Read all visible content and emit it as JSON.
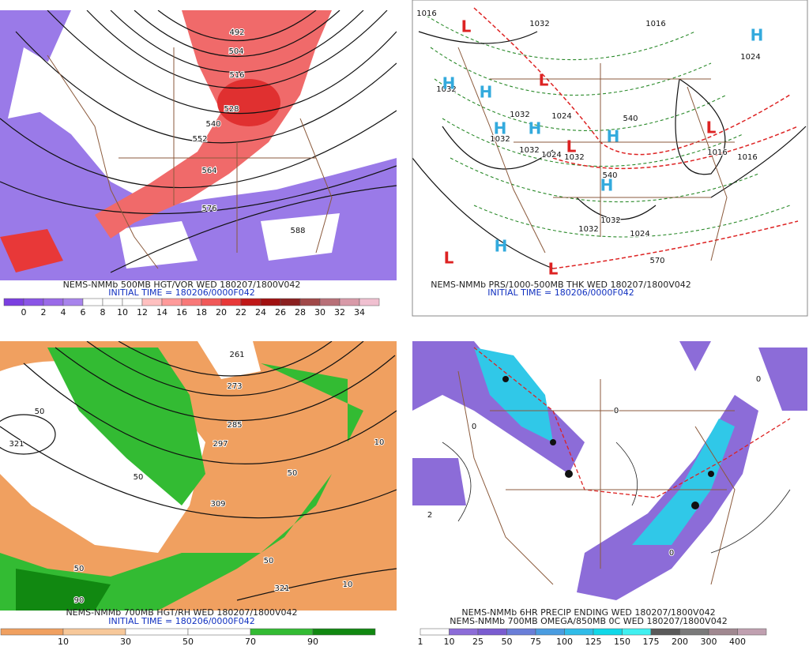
{
  "panels": [
    {
      "caption_lines": [
        "NEMS-NMMb 500MB HGT/VOR WED 180207/1800V042",
        "INITIAL TIME = 180206/0000F042"
      ],
      "map_labels": [
        "492",
        "504",
        "516",
        "528",
        "540",
        "552",
        "564",
        "576",
        "588"
      ],
      "colorbar": {
        "labels": [
          0,
          2,
          4,
          6,
          8,
          10,
          12,
          14,
          16,
          18,
          20,
          22,
          24,
          26,
          28,
          30,
          32,
          34
        ],
        "colors": [
          "#7b3fe0",
          "#8a55e6",
          "#9a6ae8",
          "#a884ec",
          "#ffffff",
          "#ffffff",
          "#ffffff",
          "#ffc0c0",
          "#ff9a9a",
          "#f87878",
          "#f05858",
          "#e83838",
          "#c01818",
          "#a01010",
          "#8a2020",
          "#a04848",
          "#b87078",
          "#d89aa8",
          "#f0c0d0"
        ]
      }
    },
    {
      "caption_lines": [
        "NEMS-NMMb PRS/1000-500MB THK WED 180207/1800V042",
        "INITIAL TIME = 180206/0000F042"
      ],
      "map_labels": [
        "1016",
        "1016",
        "1032",
        "1032",
        "1024",
        "1032",
        "1032",
        "1032",
        "1024",
        "1016",
        "1024",
        "1032",
        "1032",
        "1024",
        "1032",
        "540",
        "540",
        "570",
        "1016",
        "H",
        "H",
        "H",
        "H",
        "H",
        "H",
        "H",
        "H",
        "L",
        "L",
        "L",
        "L",
        "L",
        "L"
      ]
    },
    {
      "caption_lines": [
        "NEMS-NMMb 700MB HGT/RH WED 180207/1800V042",
        "INITIAL TIME = 180206/0000F042"
      ],
      "map_labels": [
        "261",
        "273",
        "285",
        "297",
        "309",
        "321",
        "321",
        "50",
        "50",
        "50",
        "50",
        "50",
        "10",
        "10",
        "90"
      ],
      "colorbar": {
        "labels": [
          10,
          30,
          50,
          70,
          90
        ],
        "colors": [
          "#f0a060",
          "#f7c89a",
          "#ffffff",
          "#ffffff",
          "#33bb33",
          "#118811"
        ]
      }
    },
    {
      "caption_lines": [
        "NEMS-NMMb 6HR PRECIP ENDING WED 180207/1800V042",
        "NEMS-NMMb 700MB OMEGA/850MB 0C WED 180207/1800V042"
      ],
      "map_labels": [
        "2",
        "0",
        "0",
        "0",
        "0"
      ],
      "colorbar": {
        "labels": [
          1,
          10,
          25,
          50,
          75,
          100,
          125,
          150,
          175,
          200,
          300,
          400
        ],
        "colors": [
          "#ffffff",
          "#8c6cd8",
          "#7a5cd0",
          "#6a7ed8",
          "#4a9ce0",
          "#30bce8",
          "#10d8e8",
          "#40f0f0",
          "#5a5a5a",
          "#7a7a7a",
          "#a08890",
          "#c0a0b0"
        ]
      }
    }
  ]
}
